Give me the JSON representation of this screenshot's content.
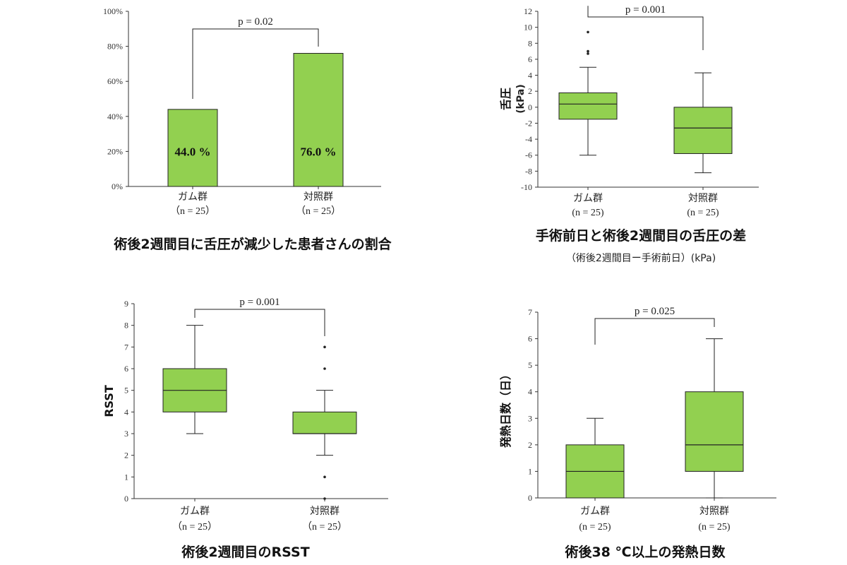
{
  "colors": {
    "fill": "#92D050",
    "stroke": "#222222",
    "axis": "#333333"
  },
  "chart_data": [
    {
      "type": "bar",
      "title": "術後2週間目に舌圧が減少した患者さんの割合",
      "categories": [
        "ガム群",
        "対照群"
      ],
      "n_labels": [
        "（n = 25）",
        "（n = 25）"
      ],
      "values": [
        44.0,
        76.0
      ],
      "data_labels": [
        "44.0 %",
        "76.0 %"
      ],
      "ylim": [
        0,
        100
      ],
      "ticks": [
        0,
        20,
        40,
        60,
        80,
        100
      ],
      "tick_labels": [
        "0%",
        "20%",
        "40%",
        "60%",
        "80%",
        "100%"
      ],
      "p_value": "p = 0.02"
    },
    {
      "type": "box",
      "title": "手術前日と術後2週間目の舌圧の差",
      "subtitle": "（術後2週間目ー手術前日）(kPa)",
      "ylabel": "舌圧",
      "ylabel_unit": "(kPa)",
      "categories": [
        "ガム群",
        "対照群"
      ],
      "n_labels": [
        "(n = 25)",
        "(n = 25)"
      ],
      "boxes": [
        {
          "min": -6,
          "q1": -1.5,
          "median": 0.4,
          "q3": 1.8,
          "max": 5,
          "outliers": [
            6.7,
            7.0,
            9.4
          ]
        },
        {
          "min": -8.2,
          "q1": -5.8,
          "median": -2.6,
          "q3": 0,
          "max": 4.3,
          "outliers": []
        }
      ],
      "ylim": [
        -10,
        12
      ],
      "ticks": [
        -10,
        -8,
        -6,
        -4,
        -2,
        0,
        2,
        4,
        6,
        8,
        10,
        12
      ],
      "tick_labels": [
        "-10",
        "-8",
        "-6",
        "-4",
        "-2",
        "0",
        "2",
        "4",
        "6",
        "8",
        "10",
        "12"
      ],
      "p_value": "p = 0.001"
    },
    {
      "type": "box",
      "title": "術後2週間目のRSST",
      "ylabel": "RSST",
      "categories": [
        "ガム群",
        "対照群"
      ],
      "n_labels": [
        "（n = 25）",
        "（n = 25）"
      ],
      "boxes": [
        {
          "min": 3,
          "q1": 4,
          "median": 5,
          "q3": 6,
          "max": 8,
          "outliers": []
        },
        {
          "min": 2,
          "q1": 3,
          "median": 3,
          "q3": 4,
          "max": 5,
          "outliers": [
            6,
            7,
            1,
            0
          ]
        }
      ],
      "ylim": [
        0,
        9
      ],
      "ticks": [
        0,
        1,
        2,
        3,
        4,
        5,
        6,
        7,
        8,
        9
      ],
      "tick_labels": [
        "0",
        "1",
        "2",
        "3",
        "4",
        "5",
        "6",
        "7",
        "8",
        "9"
      ],
      "p_value": "p = 0.001"
    },
    {
      "type": "box",
      "title": "術後38 ℃以上の発熱日数",
      "ylabel": "発熱日数（日）",
      "categories": [
        "ガム群",
        "対照群"
      ],
      "n_labels": [
        "(n = 25)",
        "(n = 25)"
      ],
      "boxes": [
        {
          "min": 0,
          "q1": 0,
          "median": 1,
          "q3": 2,
          "max": 3,
          "outliers": []
        },
        {
          "min": 0,
          "q1": 1,
          "median": 2,
          "q3": 4,
          "max": 6,
          "outliers": []
        }
      ],
      "ylim": [
        0,
        7
      ],
      "ticks": [
        0,
        1,
        2,
        3,
        4,
        5,
        6,
        7
      ],
      "tick_labels": [
        "0",
        "1",
        "2",
        "3",
        "4",
        "5",
        "6",
        "7"
      ],
      "p_value": "p = 0.025"
    }
  ]
}
